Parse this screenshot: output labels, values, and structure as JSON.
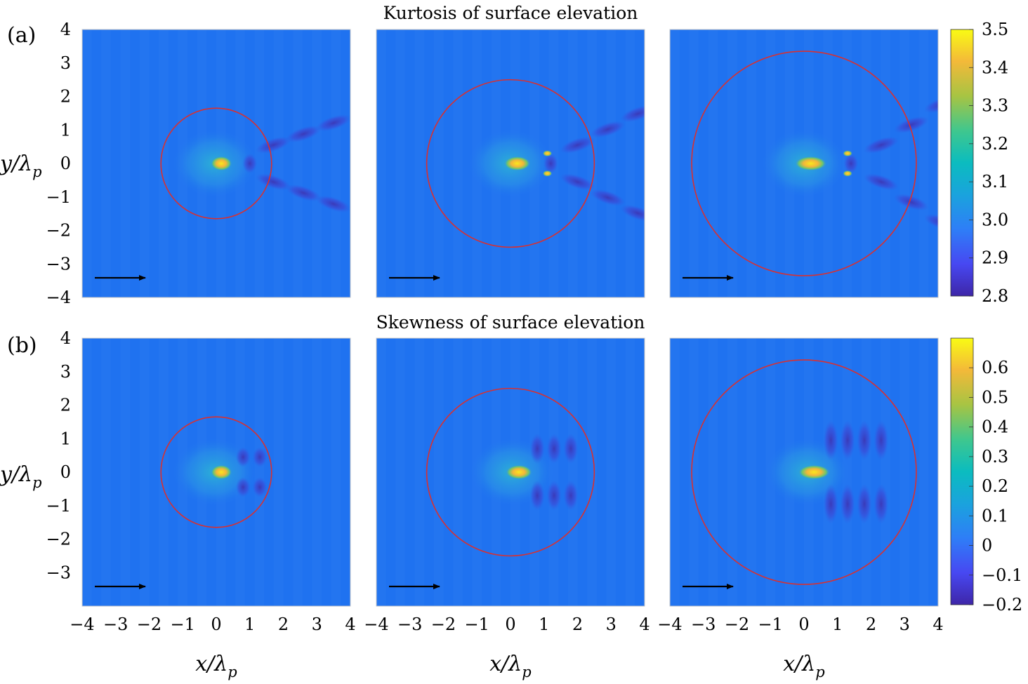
{
  "chart_data": [
    {
      "type": "heatmap",
      "panel_label": "(a)",
      "title": "Kurtosis of surface elevation",
      "ylabel": "y/λp",
      "xlim": [
        -4,
        4
      ],
      "ylim": [
        -4,
        4
      ],
      "y_ticks": [
        "−4",
        "−3",
        "−2",
        "−1",
        "0",
        "1",
        "2",
        "3",
        "4"
      ],
      "x_ticks": [],
      "colorbar": {
        "min": 2.8,
        "max": 3.5,
        "ticks": [
          "2.8",
          "2.9",
          "3.0",
          "3.1",
          "3.2",
          "3.3",
          "3.4",
          "3.5"
        ]
      },
      "background_value": 2.96,
      "subplots": [
        {
          "circle_radius": 1.65,
          "peak": {
            "x": 0.15,
            "y": 0,
            "value": 3.45
          }
        },
        {
          "circle_radius": 2.5,
          "peak": {
            "x": 0.2,
            "y": 0,
            "value": 3.45
          }
        },
        {
          "circle_radius": 3.35,
          "peak": {
            "x": 0.2,
            "y": 0,
            "value": 3.42
          }
        }
      ],
      "arrow_direction": "+x"
    },
    {
      "type": "heatmap",
      "panel_label": "(b)",
      "title": "Skewness of surface elevation",
      "xlabel": "x/λp",
      "ylabel": "y/λp",
      "xlim": [
        -4,
        4
      ],
      "ylim": [
        -4,
        4
      ],
      "y_ticks": [
        "−3",
        "−2",
        "−1",
        "0",
        "1",
        "2",
        "3",
        "4"
      ],
      "x_ticks": [
        "−4",
        "−3",
        "−2",
        "−1",
        "0",
        "1",
        "2",
        "3",
        "4"
      ],
      "colorbar": {
        "min": -0.2,
        "max": 0.7,
        "ticks": [
          "−0.2",
          "−0.1",
          "0",
          "0.1",
          "0.2",
          "0.3",
          "0.4",
          "0.5",
          "0.6"
        ]
      },
      "background_value": 0.0,
      "subplots": [
        {
          "circle_radius": 1.65,
          "peak": {
            "x": 0.15,
            "y": 0,
            "value": 0.6
          }
        },
        {
          "circle_radius": 2.5,
          "peak": {
            "x": 0.25,
            "y": 0,
            "value": 0.6
          }
        },
        {
          "circle_radius": 3.35,
          "peak": {
            "x": 0.3,
            "y": 0,
            "value": 0.58
          }
        }
      ],
      "arrow_direction": "+x"
    }
  ],
  "colors": {
    "circle": "#d93030",
    "arrow": "#000000",
    "field_background": "#1f72f0"
  }
}
